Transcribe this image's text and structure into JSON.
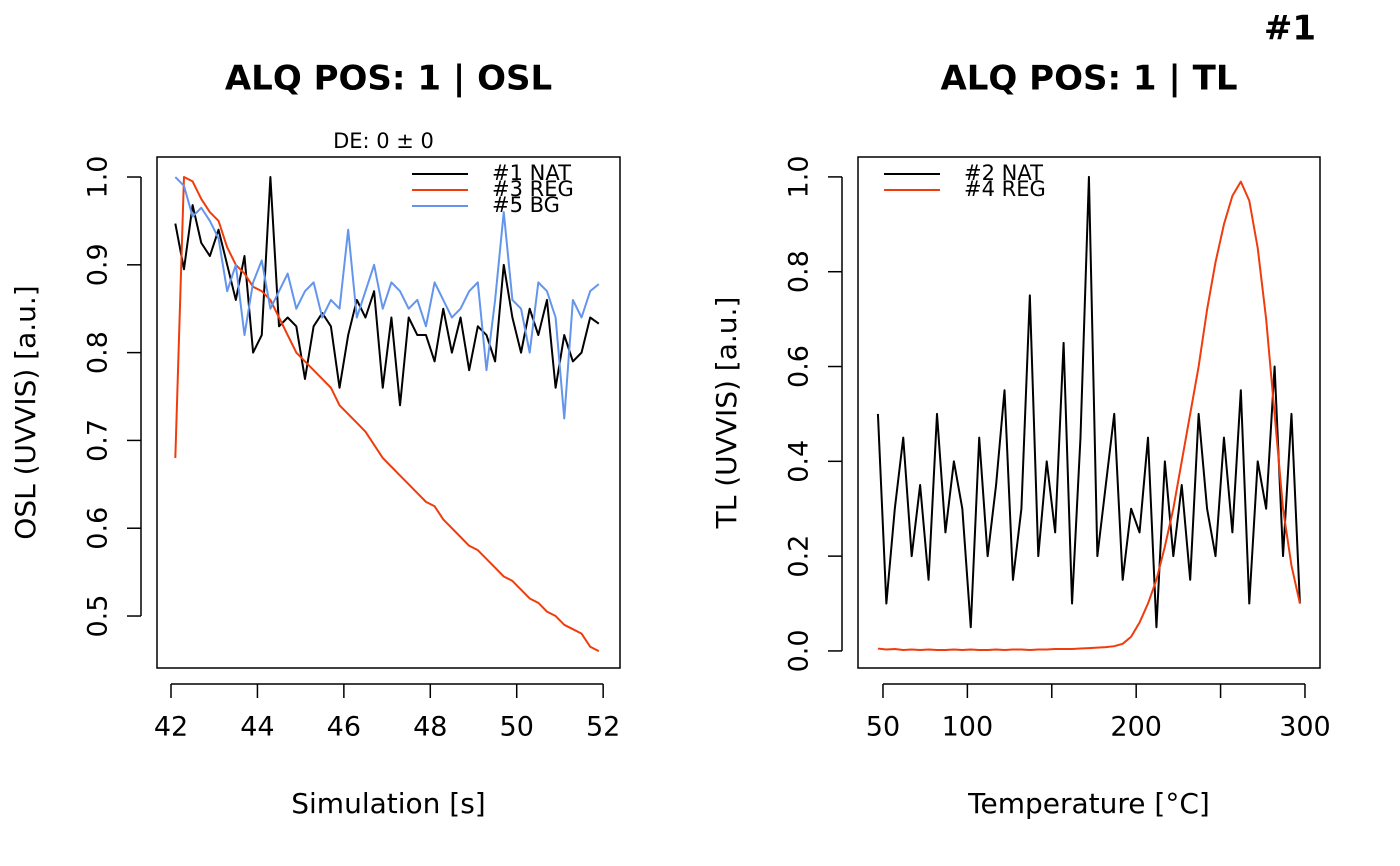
{
  "header": "#1",
  "chart_data": [
    {
      "type": "line",
      "title": "ALQ POS: 1 | OSL",
      "subtitle": "DE: 0 ± 0",
      "x_label": "Simulation [s]",
      "y_label": "OSL (UVVIS) [a.u.]",
      "legend": "topright",
      "x": [
        42.1,
        42.3,
        42.5,
        42.7,
        42.9,
        43.1,
        43.3,
        43.5,
        43.7,
        43.9,
        44.1,
        44.3,
        44.5,
        44.7,
        44.9,
        45.1,
        45.3,
        45.5,
        45.7,
        45.9,
        46.1,
        46.3,
        46.5,
        46.7,
        46.9,
        47.1,
        47.3,
        47.5,
        47.7,
        47.9,
        48.1,
        48.3,
        48.5,
        48.7,
        48.9,
        49.1,
        49.3,
        49.5,
        49.7,
        49.9,
        50.1,
        50.3,
        50.5,
        50.7,
        50.9,
        51.1,
        51.3,
        51.5,
        51.7,
        51.9
      ],
      "series": [
        {
          "name": "#1 NAT",
          "color": "#000000",
          "values": [
            0.947,
            0.895,
            0.968,
            0.925,
            0.91,
            0.94,
            0.9,
            0.86,
            0.91,
            0.8,
            0.82,
            1.0,
            0.83,
            0.84,
            0.83,
            0.77,
            0.83,
            0.845,
            0.83,
            0.76,
            0.82,
            0.86,
            0.84,
            0.87,
            0.76,
            0.84,
            0.74,
            0.84,
            0.82,
            0.82,
            0.79,
            0.85,
            0.8,
            0.84,
            0.78,
            0.83,
            0.82,
            0.79,
            0.9,
            0.84,
            0.8,
            0.85,
            0.82,
            0.86,
            0.76,
            0.82,
            0.79,
            0.8,
            0.84,
            0.833
          ]
        },
        {
          "name": "#3 REG",
          "color": "#f03c0c",
          "values": [
            0.68,
            1.0,
            0.995,
            0.975,
            0.96,
            0.95,
            0.92,
            0.9,
            0.89,
            0.875,
            0.87,
            0.86,
            0.84,
            0.82,
            0.8,
            0.79,
            0.78,
            0.77,
            0.76,
            0.74,
            0.73,
            0.72,
            0.71,
            0.695,
            0.68,
            0.67,
            0.66,
            0.65,
            0.64,
            0.63,
            0.625,
            0.61,
            0.6,
            0.59,
            0.58,
            0.575,
            0.565,
            0.555,
            0.545,
            0.54,
            0.53,
            0.52,
            0.515,
            0.505,
            0.5,
            0.49,
            0.485,
            0.48,
            0.465,
            0.46
          ]
        },
        {
          "name": "#5 BG",
          "color": "#6495ed",
          "values": [
            1.0,
            0.99,
            0.955,
            0.965,
            0.95,
            0.93,
            0.87,
            0.9,
            0.82,
            0.88,
            0.905,
            0.85,
            0.87,
            0.89,
            0.85,
            0.87,
            0.88,
            0.84,
            0.86,
            0.85,
            0.94,
            0.84,
            0.87,
            0.9,
            0.85,
            0.88,
            0.87,
            0.85,
            0.86,
            0.83,
            0.88,
            0.86,
            0.84,
            0.85,
            0.87,
            0.88,
            0.78,
            0.86,
            0.96,
            0.86,
            0.85,
            0.8,
            0.88,
            0.87,
            0.84,
            0.725,
            0.86,
            0.84,
            0.87,
            0.878
          ]
        }
      ],
      "xlim": [
        41.676,
        52.39
      ],
      "xticks": [
        42,
        44,
        46,
        48,
        50,
        52
      ],
      "ylim": [
        0.4408,
        1.0228
      ],
      "yticks": [
        0.5,
        0.6,
        0.7,
        0.8,
        0.9,
        {
          "value": 1,
          "label": "1.0"
        }
      ]
    },
    {
      "type": "line",
      "title": "ALQ POS: 1 | TL",
      "x_label": "Temperature [°C]",
      "y_label": "TL (UVVIS) [a.u.]",
      "legend": "topleft",
      "x": [
        47,
        52,
        57,
        62,
        67,
        72,
        77,
        82,
        87,
        92,
        97,
        102,
        107,
        112,
        117,
        122,
        127,
        132,
        137,
        142,
        147,
        152,
        157,
        162,
        167,
        172,
        177,
        182,
        187,
        192,
        197,
        202,
        207,
        212,
        217,
        222,
        227,
        232,
        237,
        242,
        247,
        252,
        257,
        262,
        267,
        272,
        277,
        282,
        287,
        292,
        297
      ],
      "series": [
        {
          "name": "#2 NAT",
          "color": "#000000",
          "values": [
            0.5,
            0.1,
            0.3,
            0.45,
            0.2,
            0.35,
            0.15,
            0.5,
            0.25,
            0.4,
            0.3,
            0.05,
            0.45,
            0.2,
            0.35,
            0.55,
            0.15,
            0.3,
            0.75,
            0.2,
            0.4,
            0.25,
            0.65,
            0.1,
            0.45,
            1.0,
            0.2,
            0.35,
            0.5,
            0.15,
            0.3,
            0.25,
            0.45,
            0.05,
            0.4,
            0.2,
            0.35,
            0.15,
            0.5,
            0.3,
            0.2,
            0.45,
            0.25,
            0.55,
            0.1,
            0.4,
            0.3,
            0.6,
            0.2,
            0.5,
            0.1
          ]
        },
        {
          "name": "#4 REG",
          "color": "#f03c0c",
          "values": [
            0.005,
            0.003,
            0.004,
            0.002,
            0.003,
            0.002,
            0.003,
            0.002,
            0.002,
            0.003,
            0.002,
            0.003,
            0.002,
            0.002,
            0.003,
            0.002,
            0.003,
            0.003,
            0.002,
            0.003,
            0.003,
            0.004,
            0.004,
            0.004,
            0.005,
            0.006,
            0.007,
            0.008,
            0.01,
            0.015,
            0.03,
            0.06,
            0.1,
            0.15,
            0.22,
            0.3,
            0.4,
            0.5,
            0.6,
            0.72,
            0.82,
            0.9,
            0.96,
            0.99,
            0.95,
            0.85,
            0.7,
            0.5,
            0.3,
            0.18,
            0.1
          ]
        }
      ],
      "xlim": [
        35.2,
        308.9
      ],
      "xticks": [
        50,
        100,
        {
          "value": 150,
          "label": null
        },
        200,
        {
          "value": 250,
          "label": null
        },
        300
      ],
      "ylim": [
        -0.036,
        1.042
      ],
      "yticks": [
        {
          "value": 0,
          "label": "0.0"
        },
        0.2,
        0.4,
        0.6,
        0.8,
        {
          "value": 1,
          "label": "1.0"
        }
      ]
    }
  ]
}
